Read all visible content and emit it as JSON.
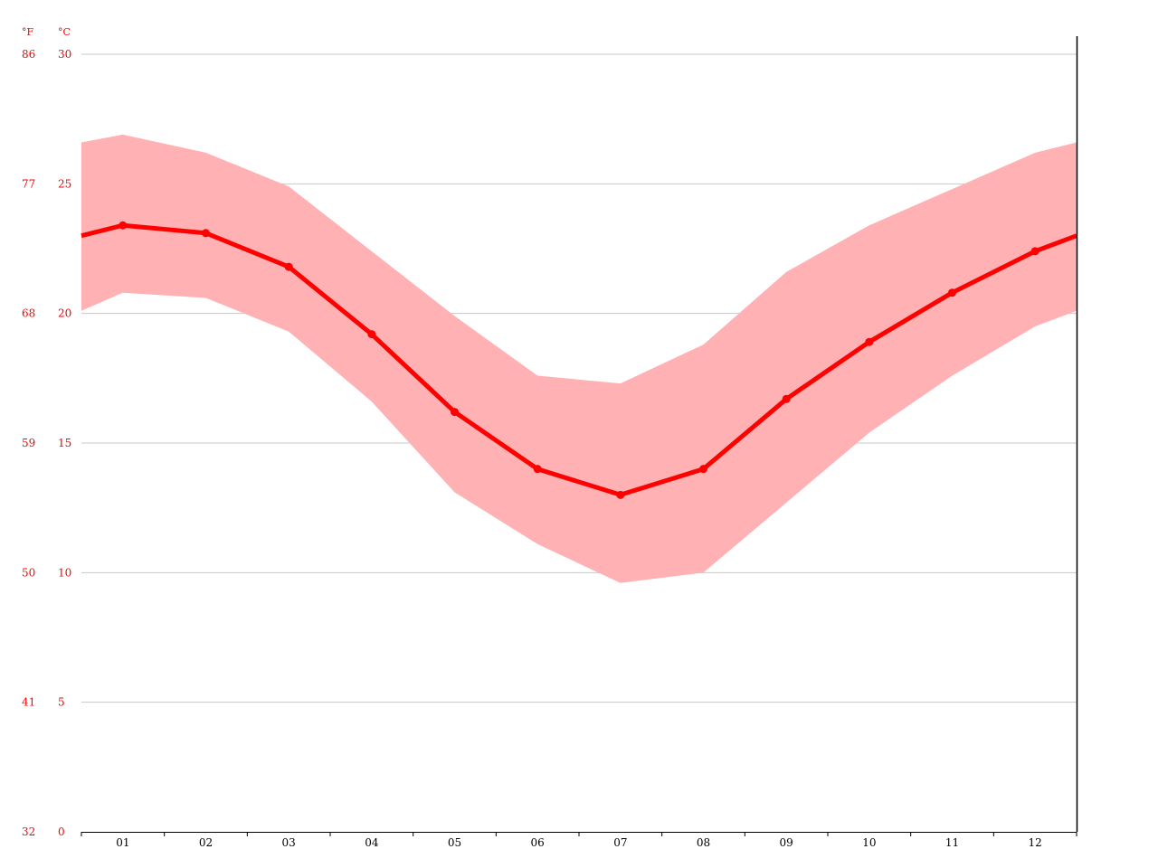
{
  "chart_data": {
    "type": "line",
    "categories": [
      "01",
      "02",
      "03",
      "04",
      "05",
      "06",
      "07",
      "08",
      "09",
      "10",
      "11",
      "12"
    ],
    "series": [
      {
        "name": "",
        "values": [
          23.4,
          23.1,
          21.8,
          19.2,
          16.2,
          14.0,
          13.0,
          14.0,
          16.7,
          18.9,
          20.8,
          22.4
        ]
      }
    ],
    "band": {
      "upper": [
        26.9,
        26.2,
        24.9,
        22.4,
        19.9,
        17.6,
        17.3,
        18.8,
        21.6,
        23.4,
        24.8,
        26.2
      ],
      "lower": [
        20.8,
        20.6,
        19.3,
        16.6,
        13.1,
        11.1,
        9.6,
        10.0,
        12.7,
        15.4,
        17.6,
        19.5
      ]
    },
    "edge_values": {
      "start": {
        "value": 23.0,
        "upper": 26.6,
        "lower": 20.1
      },
      "end": {
        "value": 23.0,
        "upper": 26.6,
        "lower": 20.1
      }
    },
    "y_ticks_c": [
      "0",
      "5",
      "10",
      "15",
      "20",
      "25",
      "30"
    ],
    "y_ticks_f": [
      "32",
      "41",
      "50",
      "59",
      "68",
      "77",
      "86"
    ],
    "unit_c": "°C",
    "unit_f": "°F",
    "ylim": [
      0,
      30
    ],
    "grid": true,
    "title": "",
    "xlabel": "",
    "ylabel": ""
  },
  "colors": {
    "line": "#ff0000",
    "band": "#ffb1b4",
    "grid": "#c8c8c8",
    "axis": "#000000",
    "axis_label": "#ff0000",
    "tick_label": "#000000"
  }
}
